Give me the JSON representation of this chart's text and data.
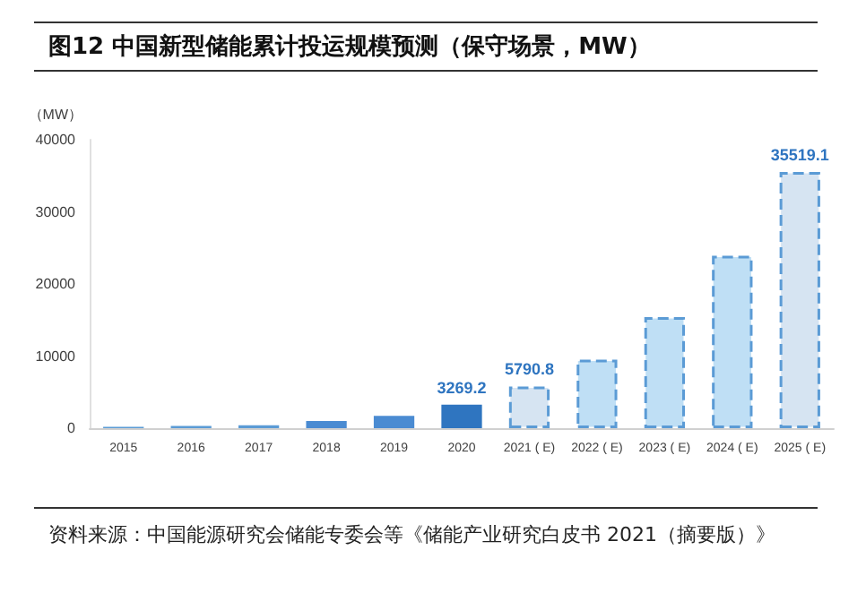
{
  "chart_data": {
    "type": "bar",
    "title": "图12 中国新型储能累计投运规模预测（保守场景，MW）",
    "ylabel": "（MW）",
    "categories": [
      "2015",
      "2016",
      "2017",
      "2018",
      "2019",
      "2020",
      "2021 ( E)",
      "2022 ( E)",
      "2023 ( E)",
      "2024 ( E)",
      "2025 ( E)"
    ],
    "series": [
      {
        "colors": [
          "#5b9bd5",
          "#5b9bd5",
          "#5b9bd5",
          "#4a8bd2",
          "#4a8bd2",
          "#2f75c0",
          null,
          null,
          null,
          null,
          null
        ],
        "values": [
          200,
          300,
          400,
          1000,
          1700,
          3269.2,
          null,
          null,
          null,
          null,
          null
        ],
        "value_labels": [
          null,
          null,
          null,
          null,
          null,
          "3269.2",
          null,
          null,
          null,
          null,
          null
        ]
      },
      {
        "colors": [
          null,
          null,
          null,
          null,
          null,
          null,
          "#d6e4f2",
          "#bfdff5",
          "#bfdff5",
          "#bfdff5",
          "#d6e4f2"
        ],
        "line_style": "dashed",
        "values": [
          null,
          null,
          null,
          null,
          null,
          null,
          5790.8,
          9500,
          15400,
          23900,
          35519.1
        ],
        "value_labels": [
          null,
          null,
          null,
          null,
          null,
          null,
          "5790.8",
          null,
          null,
          null,
          "35519.1"
        ]
      }
    ],
    "ylim": [
      0,
      40000
    ],
    "yticks": [
      0,
      10000,
      20000,
      30000,
      40000
    ],
    "grid": false,
    "annotations": [
      "资料来源：中国能源研究会储能专委会等《储能产业研究白皮书 2021（摘要版）》"
    ]
  }
}
